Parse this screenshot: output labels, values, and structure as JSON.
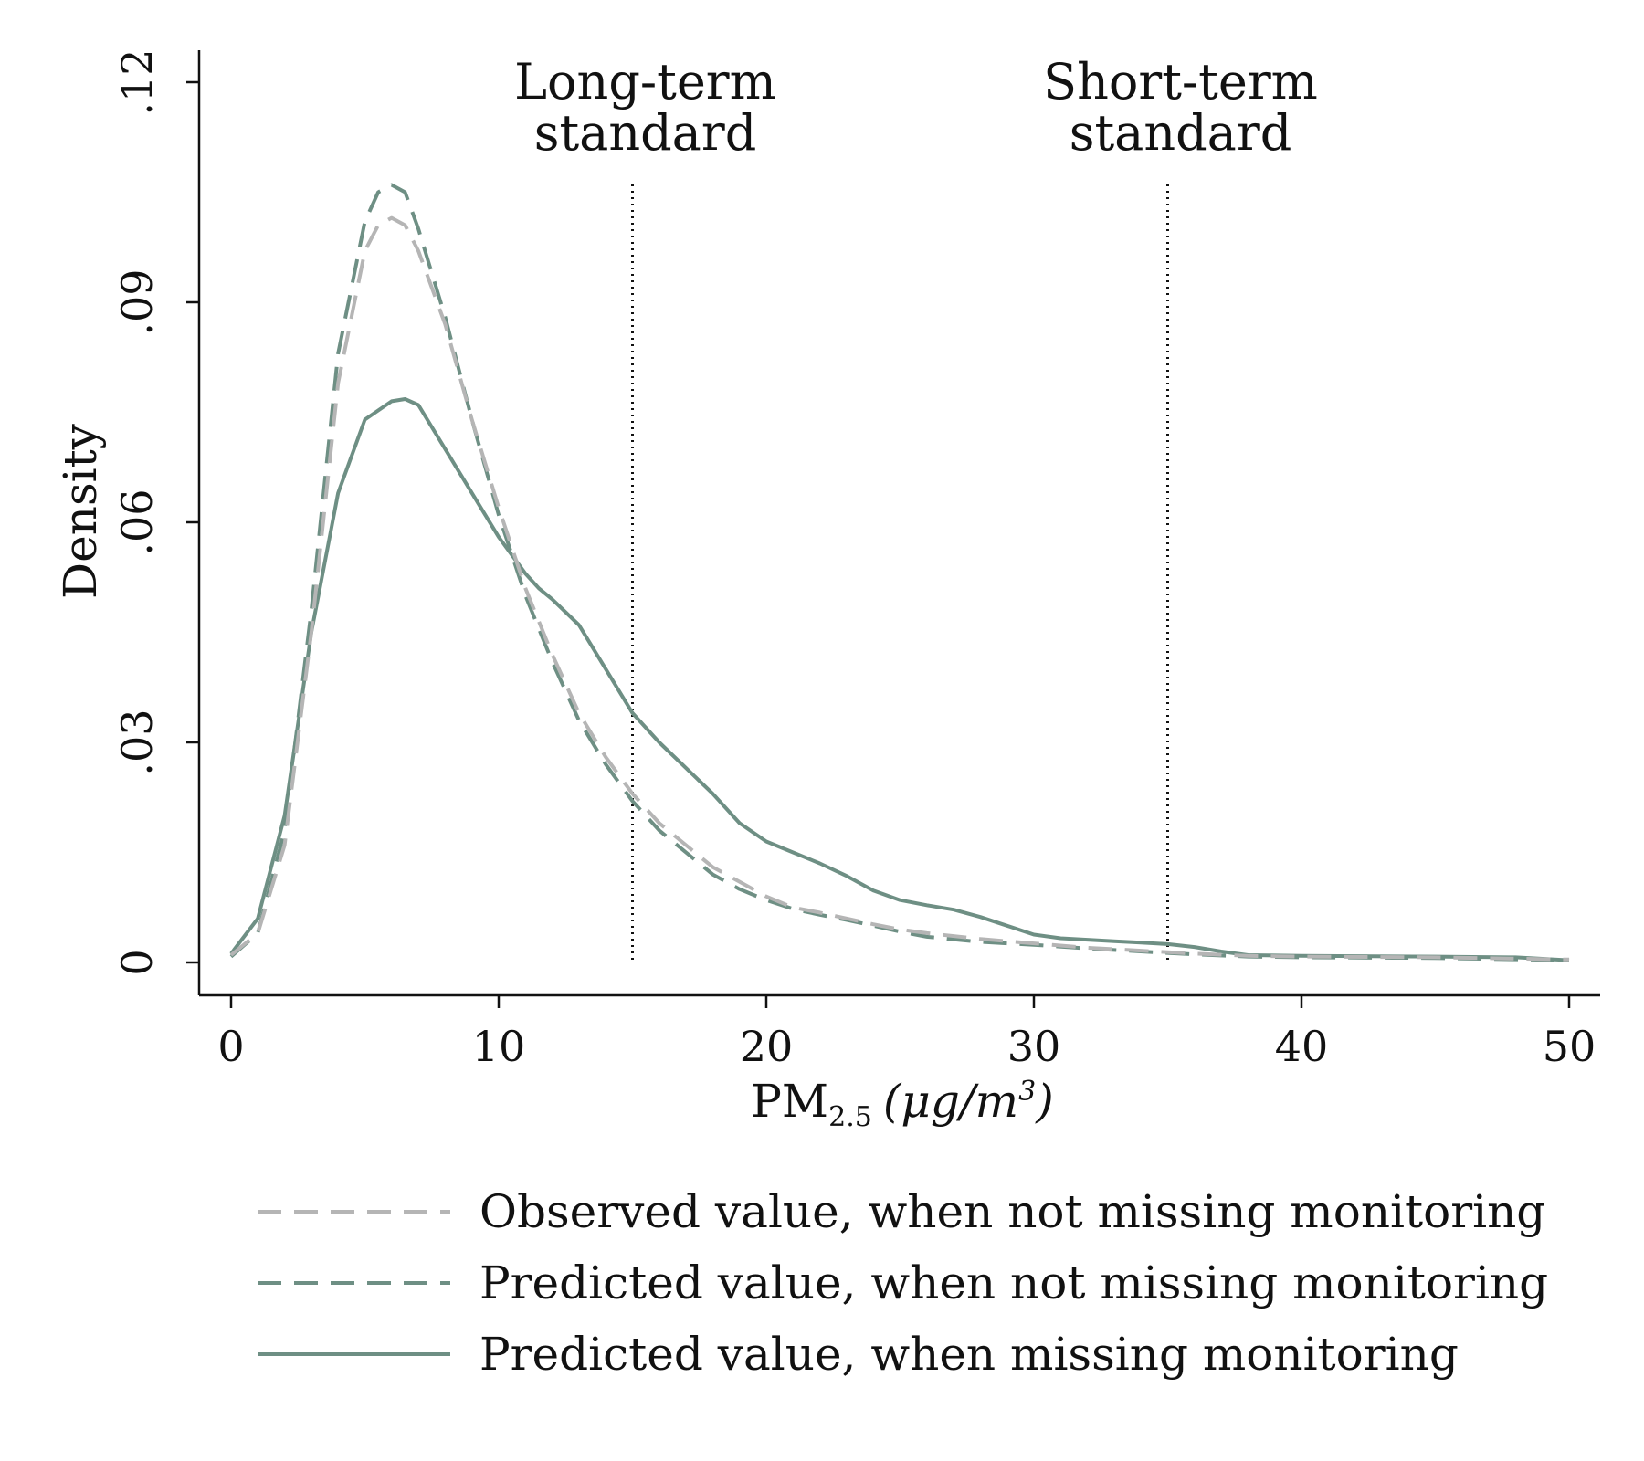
{
  "chart_data": {
    "type": "line",
    "xlabel": "PM",
    "xlabel_sub": "2.5",
    "xlabel_unit": "(μg/m",
    "xlabel_unit_sup": "3",
    "xlabel_unit_close": ")",
    "ylabel": "Density",
    "xlim": [
      0,
      50
    ],
    "ylim": [
      0,
      0.12
    ],
    "x_ticks": [
      0,
      10,
      20,
      30,
      40,
      50
    ],
    "x_tick_labels": [
      "0",
      "10",
      "20",
      "30",
      "40",
      "50"
    ],
    "y_ticks": [
      0,
      0.03,
      0.06,
      0.09,
      0.12
    ],
    "y_tick_labels": [
      "0",
      ".03",
      ".06",
      ".09",
      ".12"
    ],
    "grid": false,
    "legend_position": "bottom",
    "reference_lines": [
      {
        "x": 15,
        "label_lines": [
          "Long-term",
          "standard"
        ]
      },
      {
        "x": 35,
        "label_lines": [
          "Short-term",
          "standard"
        ]
      }
    ],
    "series": [
      {
        "name": "Observed value, when not missing monitoring",
        "color": "#b5b5b5",
        "style": "dashed",
        "x": [
          0,
          1,
          2,
          3,
          4,
          5,
          5.5,
          6,
          6.5,
          7,
          8,
          9,
          10,
          11,
          12,
          13,
          14,
          15,
          16,
          17,
          18,
          19,
          20,
          21,
          22,
          23,
          24,
          25,
          26,
          28,
          30,
          32,
          34,
          35,
          36,
          38,
          40,
          45,
          50
        ],
        "y": [
          0.001,
          0.004,
          0.016,
          0.045,
          0.079,
          0.097,
          0.1005,
          0.1015,
          0.1005,
          0.097,
          0.087,
          0.074,
          0.062,
          0.051,
          0.042,
          0.034,
          0.028,
          0.023,
          0.019,
          0.016,
          0.013,
          0.011,
          0.009,
          0.0075,
          0.0068,
          0.006,
          0.0052,
          0.0045,
          0.004,
          0.0032,
          0.0026,
          0.002,
          0.0016,
          0.0014,
          0.0012,
          0.0009,
          0.0008,
          0.0007,
          0.0004
        ]
      },
      {
        "name": "Predicted value, when not missing monitoring",
        "color": "#6e8f84",
        "style": "dashed",
        "x": [
          0,
          1,
          2,
          3,
          4,
          5,
          5.5,
          6,
          6.5,
          7,
          8,
          9,
          10,
          11,
          12,
          13,
          14,
          15,
          16,
          17,
          18,
          19,
          20,
          21,
          22,
          23,
          24,
          25,
          26,
          28,
          30,
          32,
          34,
          35,
          36,
          38,
          40,
          45,
          50
        ],
        "y": [
          0.0008,
          0.004,
          0.018,
          0.048,
          0.083,
          0.101,
          0.105,
          0.106,
          0.105,
          0.1,
          0.088,
          0.074,
          0.061,
          0.05,
          0.041,
          0.033,
          0.027,
          0.022,
          0.018,
          0.015,
          0.012,
          0.01,
          0.0085,
          0.0073,
          0.0065,
          0.0058,
          0.005,
          0.0042,
          0.0035,
          0.0028,
          0.0024,
          0.0019,
          0.0015,
          0.0013,
          0.0011,
          0.0008,
          0.0007,
          0.0006,
          0.0003
        ]
      },
      {
        "name": "Predicted value, when missing monitoring",
        "color": "#6e8f84",
        "style": "solid",
        "x": [
          0,
          1,
          2,
          3,
          4,
          5,
          6,
          6.5,
          7,
          8,
          9,
          10,
          11,
          11.5,
          12,
          13,
          14,
          15,
          16,
          17,
          18,
          19,
          20,
          21,
          22,
          23,
          24,
          25,
          26,
          27,
          28,
          29,
          30,
          31,
          32,
          33,
          34,
          35,
          36,
          37,
          38,
          40,
          45,
          48,
          50
        ],
        "y": [
          0.0012,
          0.006,
          0.02,
          0.045,
          0.064,
          0.074,
          0.0765,
          0.0768,
          0.076,
          0.07,
          0.064,
          0.058,
          0.053,
          0.051,
          0.0495,
          0.046,
          0.04,
          0.034,
          0.03,
          0.0265,
          0.023,
          0.019,
          0.0165,
          0.015,
          0.0135,
          0.0118,
          0.0098,
          0.0085,
          0.0078,
          0.0072,
          0.0062,
          0.005,
          0.0038,
          0.0033,
          0.0031,
          0.0029,
          0.0027,
          0.0025,
          0.0021,
          0.0015,
          0.001,
          0.0009,
          0.0008,
          0.0007,
          0.0003
        ]
      }
    ]
  }
}
